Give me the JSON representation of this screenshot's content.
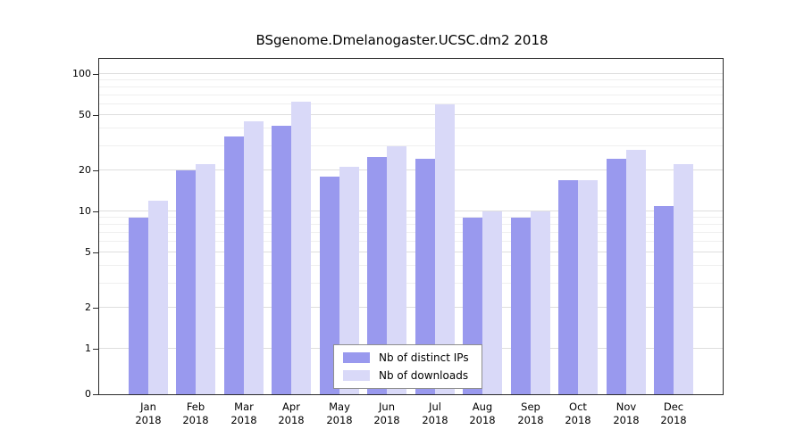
{
  "title": "BSgenome.Dmelanogaster.UCSC.dm2 2018",
  "chart_data": {
    "type": "bar",
    "title": "BSgenome.Dmelanogaster.UCSC.dm2 2018",
    "categories": [
      "Jan 2018",
      "Feb 2018",
      "Mar 2018",
      "Apr 2018",
      "May 2018",
      "Jun 2018",
      "Jul 2018",
      "Aug 2018",
      "Sep 2018",
      "Oct 2018",
      "Nov 2018",
      "Dec 2018"
    ],
    "series": [
      {
        "name": "Nb of distinct IPs",
        "color": "#9999ee",
        "values": [
          9,
          20,
          35,
          42,
          18,
          25,
          24,
          9,
          9,
          17,
          24,
          11
        ]
      },
      {
        "name": "Nb of downloads",
        "color": "#d9d9f8",
        "values": [
          12,
          22,
          45,
          63,
          21,
          30,
          60,
          10,
          10,
          17,
          28,
          22
        ]
      }
    ],
    "xlabel": "",
    "ylabel": "",
    "yscale": "log-with-zero-baseline",
    "y_ticks": [
      0,
      1,
      2,
      5,
      10,
      20,
      50,
      100
    ],
    "grid_values": [
      1,
      2,
      3,
      4,
      5,
      6,
      7,
      8,
      9,
      10,
      20,
      30,
      40,
      50,
      60,
      70,
      80,
      90,
      100
    ],
    "ylim": [
      0,
      100
    ],
    "grid": true,
    "legend_position": "bottom-center-inside"
  }
}
